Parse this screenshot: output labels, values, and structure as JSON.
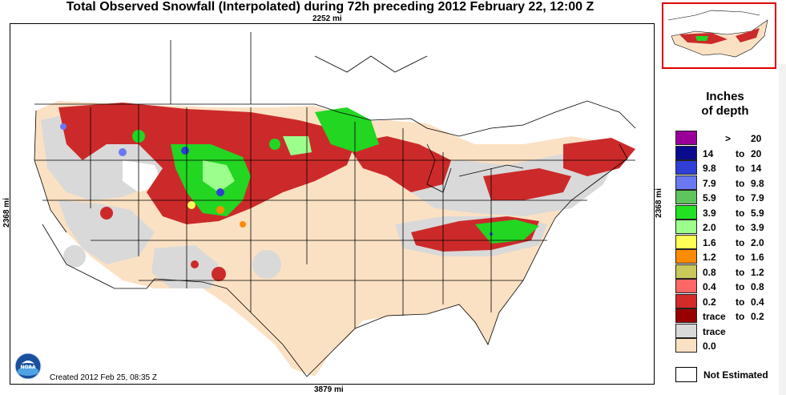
{
  "title": "Total Observed Snowfall (Interpolated) during 72h preceding 2012 February 22, 12:00 Z",
  "dimensions": {
    "top": "2252 mi",
    "bottom": "3879 mi",
    "left": "2368 mi",
    "right": "2368 mi"
  },
  "created": "Created 2012 Feb 25, 08:35 Z",
  "logo": {
    "text": "NOAA"
  },
  "legend": {
    "title_line1": "Inches",
    "title_line2": "of depth",
    "items": [
      {
        "lo": "",
        "to": "",
        "gt": ">",
        "hi": "20",
        "color": "#990099"
      },
      {
        "lo": "14",
        "to": "to",
        "hi": "20",
        "color": "#0a0a8f"
      },
      {
        "lo": "9.8",
        "to": "to",
        "hi": "14",
        "color": "#2f3fd6"
      },
      {
        "lo": "7.9",
        "to": "to",
        "hi": "9.8",
        "color": "#6a78f2"
      },
      {
        "lo": "5.9",
        "to": "to",
        "hi": "7.9",
        "color": "#5ec45e"
      },
      {
        "lo": "3.9",
        "to": "to",
        "hi": "5.9",
        "color": "#22e022"
      },
      {
        "lo": "2.0",
        "to": "to",
        "hi": "3.9",
        "color": "#9cff8c"
      },
      {
        "lo": "1.6",
        "to": "to",
        "hi": "2.0",
        "color": "#ffff55"
      },
      {
        "lo": "1.2",
        "to": "to",
        "hi": "1.6",
        "color": "#ff8c00"
      },
      {
        "lo": "0.8",
        "to": "to",
        "hi": "1.2",
        "color": "#c9c85a"
      },
      {
        "lo": "0.4",
        "to": "to",
        "hi": "0.8",
        "color": "#ff6666"
      },
      {
        "lo": "0.2",
        "to": "to",
        "hi": "0.4",
        "color": "#d42a2a"
      },
      {
        "lo": "trace",
        "to": "to",
        "hi": "0.2",
        "color": "#990000"
      },
      {
        "lo": "trace",
        "to": "",
        "hi": "",
        "color": "#d9d9d9"
      },
      {
        "lo": "0.0",
        "to": "",
        "hi": "",
        "color": "#fbe1c3"
      }
    ],
    "not_estimated": "Not Estimated"
  }
}
